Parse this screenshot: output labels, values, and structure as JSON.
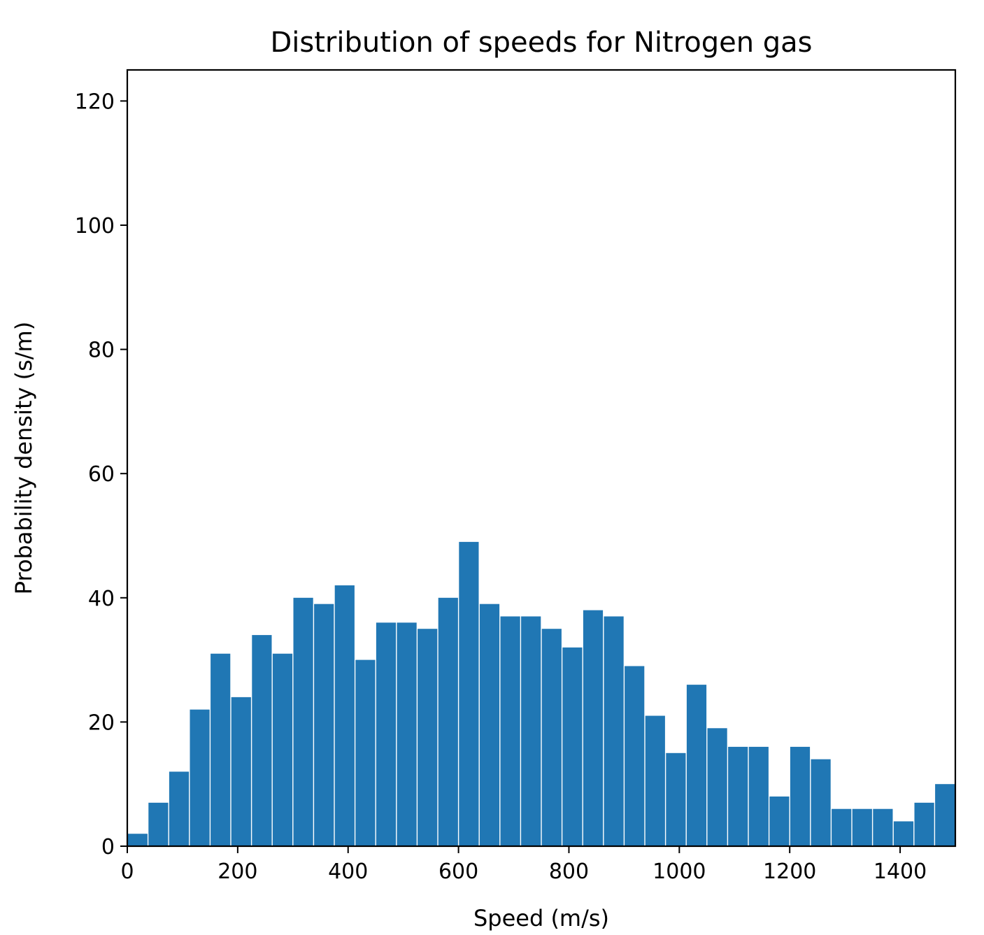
{
  "chart_data": {
    "type": "bar",
    "title": "Distribution of speeds for Nitrogen gas",
    "xlabel": "Speed (m/s)",
    "ylabel": "Probability density (s/m)",
    "xlim": [
      0,
      1500
    ],
    "ylim": [
      0,
      125
    ],
    "bin_width": 37.5,
    "x": [
      18.75,
      56.25,
      93.75,
      131.25,
      168.75,
      206.25,
      243.75,
      281.25,
      318.75,
      356.25,
      393.75,
      431.25,
      468.75,
      506.25,
      543.75,
      581.25,
      618.75,
      656.25,
      693.75,
      731.25,
      768.75,
      806.25,
      843.75,
      881.25,
      918.75,
      956.25,
      993.75,
      1031.25,
      1068.75,
      1106.25,
      1143.75,
      1181.25,
      1218.75,
      1256.25,
      1293.75,
      1331.25,
      1368.75,
      1406.25,
      1443.75,
      1481.25
    ],
    "values": [
      2,
      7,
      12,
      22,
      31,
      24,
      34,
      31,
      40,
      39,
      42,
      30,
      36,
      36,
      35,
      40,
      49,
      39,
      37,
      37,
      35,
      32,
      38,
      37,
      29,
      21,
      15,
      26,
      19,
      16,
      16,
      8,
      16,
      14,
      6,
      6,
      6,
      4,
      7,
      10
    ],
    "xticks": [
      0,
      200,
      400,
      600,
      800,
      1000,
      1200,
      1400
    ],
    "xtick_labels": [
      "0",
      "200",
      "400",
      "600",
      "800",
      "1000",
      "1200",
      "1400"
    ],
    "yticks": [
      0,
      20,
      40,
      60,
      80,
      100,
      120
    ],
    "ytick_labels": [
      "0",
      "20",
      "40",
      "60",
      "80",
      "100",
      "120"
    ],
    "bar_color": "#2077b4",
    "grid": false,
    "legend": null
  }
}
